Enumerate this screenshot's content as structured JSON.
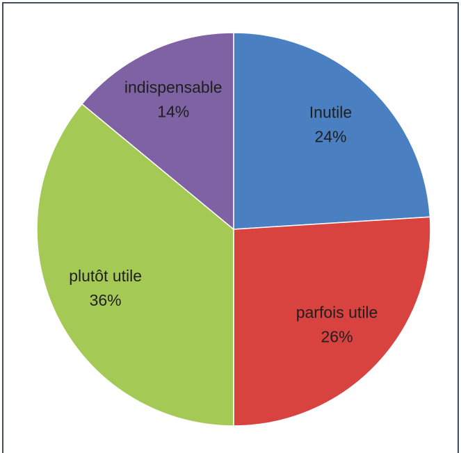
{
  "chart_data": {
    "type": "pie",
    "categories": [
      "Inutile",
      "parfois utile",
      "plutôt utile",
      "indispensable"
    ],
    "values": [
      24,
      26,
      36,
      14
    ],
    "value_labels": [
      "24%",
      "26%",
      "36%",
      "14%"
    ],
    "colors": [
      "#4a7fc1",
      "#d8423f",
      "#a5c955",
      "#7e62a3"
    ]
  }
}
